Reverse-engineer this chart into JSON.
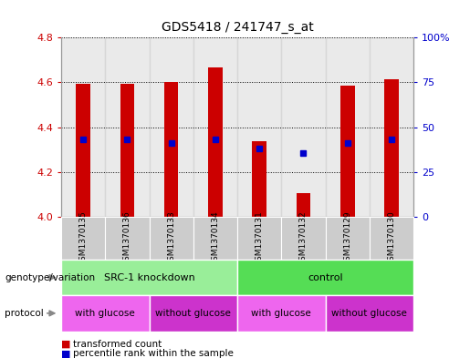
{
  "title": "GDS5418 / 241747_s_at",
  "samples": [
    "GSM1370135",
    "GSM1370136",
    "GSM1370133",
    "GSM1370134",
    "GSM1370131",
    "GSM1370132",
    "GSM1370129",
    "GSM1370130"
  ],
  "bar_tops": [
    4.595,
    4.595,
    4.6,
    4.665,
    4.335,
    4.105,
    4.585,
    4.615
  ],
  "bar_bottoms": [
    4.0,
    4.0,
    4.0,
    4.0,
    4.0,
    4.0,
    4.0,
    4.0
  ],
  "blue_dot_y": [
    4.345,
    4.345,
    4.33,
    4.345,
    4.305,
    4.285,
    4.33,
    4.345
  ],
  "blue_dot_show": [
    true,
    true,
    true,
    true,
    true,
    true,
    true,
    true
  ],
  "ylim": [
    4.0,
    4.8
  ],
  "yticks_left": [
    4.0,
    4.2,
    4.4,
    4.6,
    4.8
  ],
  "yticks_right": [
    0,
    25,
    50,
    75,
    100
  ],
  "right_ylim": [
    0,
    100
  ],
  "bar_color": "#cc0000",
  "dot_color": "#0000cc",
  "genotype_label": "genotype/variation",
  "protocol_label": "protocol",
  "groups": [
    {
      "label": "SRC-1 knockdown",
      "start": 0,
      "end": 4,
      "color": "#99ee99"
    },
    {
      "label": "control",
      "start": 4,
      "end": 8,
      "color": "#55dd55"
    }
  ],
  "protocols": [
    {
      "label": "with glucose",
      "start": 0,
      "end": 2,
      "color": "#ee66ee"
    },
    {
      "label": "without glucose",
      "start": 2,
      "end": 4,
      "color": "#cc33cc"
    },
    {
      "label": "with glucose",
      "start": 4,
      "end": 6,
      "color": "#ee66ee"
    },
    {
      "label": "without glucose",
      "start": 6,
      "end": 8,
      "color": "#cc33cc"
    }
  ],
  "legend_items": [
    {
      "label": "transformed count",
      "color": "#cc0000"
    },
    {
      "label": "percentile rank within the sample",
      "color": "#0000cc"
    }
  ],
  "sample_bg_color": "#cccccc",
  "bar_width": 0.32
}
